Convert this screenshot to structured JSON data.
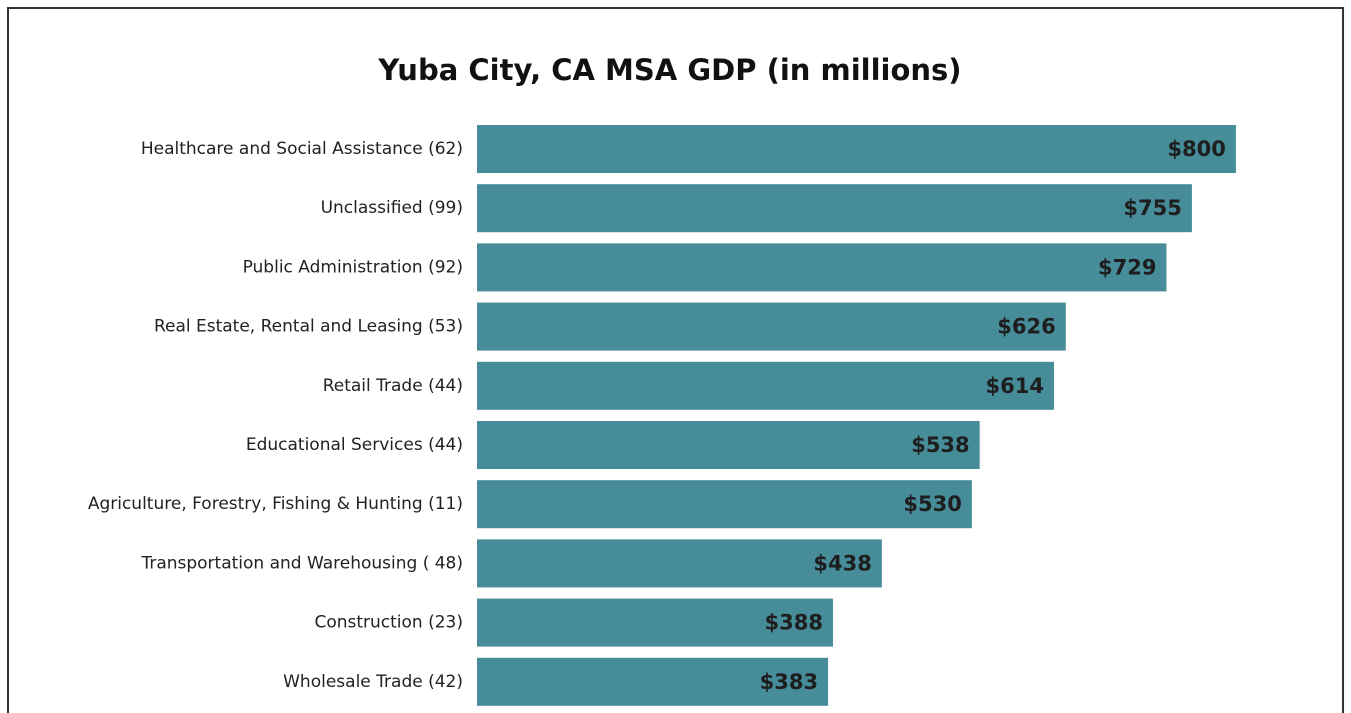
{
  "chart_data": {
    "type": "bar",
    "orientation": "horizontal",
    "title": "Yuba City, CA MSA GDP (in millions)",
    "categories": [
      "Healthcare and Social Assistance (62)",
      "Unclassified (99)",
      "Public Administration (92)",
      "Real Estate, Rental and Leasing (53)",
      "Retail Trade (44)",
      "Educational Services (44)",
      "Agriculture, Forestry, Fishing & Hunting (11)",
      "Transportation and Warehousing ( 48)",
      "Construction (23)",
      "Wholesale Trade (42)"
    ],
    "values": [
      800,
      755,
      729,
      626,
      614,
      538,
      530,
      438,
      388,
      383
    ],
    "value_labels": [
      "$800",
      "$755",
      "$729",
      "$626",
      "$614",
      "$538",
      "$530",
      "$438",
      "$388",
      "$383"
    ],
    "color": "#468c99"
  }
}
